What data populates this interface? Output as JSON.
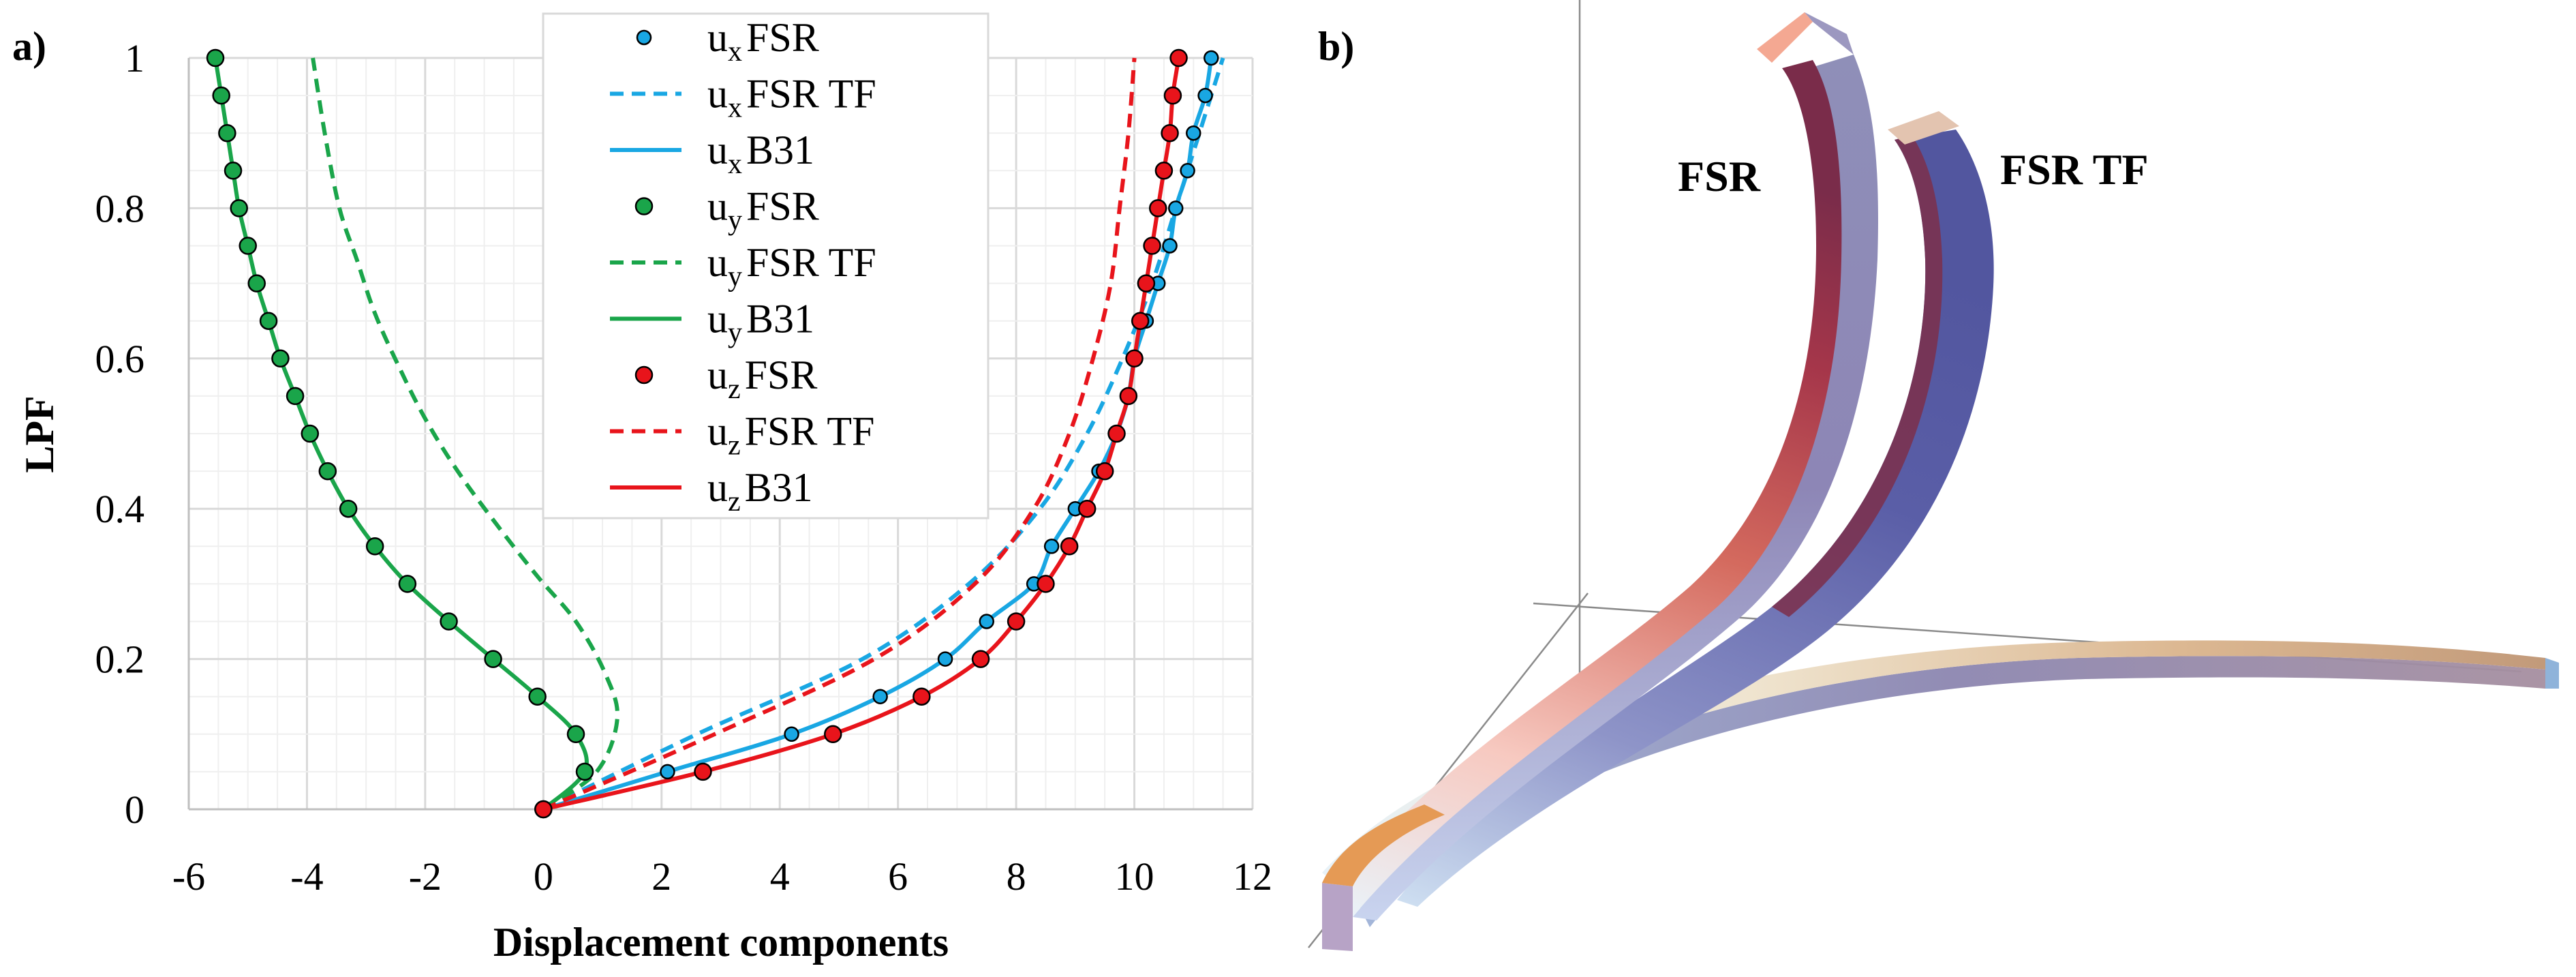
{
  "panel_a_label": "a)",
  "panel_b_label": "b)",
  "chart_data": {
    "type": "line",
    "xlabel": "Displacement components",
    "ylabel": "LPF",
    "xlim": [
      -6,
      12
    ],
    "ylim": [
      0,
      1
    ],
    "xticks": [
      "-6",
      "-4",
      "-2",
      "0",
      "2",
      "4",
      "6",
      "8",
      "10",
      "12"
    ],
    "yticks": [
      "0",
      "0.2",
      "0.4",
      "0.6",
      "0.8",
      "1"
    ],
    "grid": true,
    "legend_position": "top-center",
    "colors": {
      "ux": "#19a7e3",
      "uy": "#1aa54a",
      "uz": "#e8141b"
    },
    "series": [
      {
        "name": "ux FSR",
        "base": "u",
        "sub": "x",
        "suffix": "FSR",
        "style": "markers",
        "color": "#19a7e3",
        "x": [
          0,
          2.1,
          4.2,
          5.7,
          6.8,
          7.5,
          8.3,
          8.6,
          9.0,
          9.4,
          9.7,
          9.9,
          10.0,
          10.2,
          10.4,
          10.6,
          10.7,
          10.9,
          11.0,
          11.2,
          11.3
        ],
        "y": [
          0,
          0.05,
          0.1,
          0.15,
          0.2,
          0.25,
          0.3,
          0.35,
          0.4,
          0.45,
          0.5,
          0.55,
          0.6,
          0.65,
          0.7,
          0.75,
          0.8,
          0.85,
          0.9,
          0.95,
          1.0
        ]
      },
      {
        "name": "ux FSR TF",
        "base": "u",
        "sub": "x",
        "suffix": "FSR TF",
        "style": "dashed",
        "color": "#19a7e3",
        "x": [
          0,
          2.6,
          5.4,
          7.2,
          8.4,
          9.2,
          9.8,
          10.3,
          10.7,
          11.1,
          11.5
        ],
        "y": [
          0,
          0.1,
          0.2,
          0.3,
          0.4,
          0.5,
          0.6,
          0.7,
          0.8,
          0.9,
          1.0
        ]
      },
      {
        "name": "ux B31",
        "base": "u",
        "sub": "x",
        "suffix": "B31",
        "style": "solid",
        "color": "#19a7e3",
        "x": [
          0,
          2.1,
          4.2,
          5.7,
          6.8,
          7.5,
          8.3,
          8.6,
          9.0,
          9.4,
          9.7,
          9.9,
          10.0,
          10.2,
          10.4,
          10.6,
          10.7,
          10.9,
          11.0,
          11.2,
          11.3
        ],
        "y": [
          0,
          0.05,
          0.1,
          0.15,
          0.2,
          0.25,
          0.3,
          0.35,
          0.4,
          0.45,
          0.5,
          0.55,
          0.6,
          0.65,
          0.7,
          0.75,
          0.8,
          0.85,
          0.9,
          0.95,
          1.0
        ]
      },
      {
        "name": "uy FSR",
        "base": "u",
        "sub": "y",
        "suffix": "FSR",
        "style": "markers",
        "color": "#1aa54a",
        "x": [
          0,
          0.7,
          0.55,
          -0.1,
          -0.85,
          -1.6,
          -2.3,
          -2.85,
          -3.3,
          -3.65,
          -3.95,
          -4.2,
          -4.45,
          -4.65,
          -4.85,
          -5.0,
          -5.15,
          -5.25,
          -5.35,
          -5.45,
          -5.55
        ],
        "y": [
          0,
          0.05,
          0.1,
          0.15,
          0.2,
          0.25,
          0.3,
          0.35,
          0.4,
          0.45,
          0.5,
          0.55,
          0.6,
          0.65,
          0.7,
          0.75,
          0.8,
          0.85,
          0.9,
          0.95,
          1.0
        ]
      },
      {
        "name": "uy FSR TF",
        "base": "u",
        "sub": "y",
        "suffix": "FSR TF",
        "style": "dashed",
        "color": "#1aa54a",
        "x": [
          0,
          0.9,
          1.25,
          1.05,
          0.55,
          -0.1,
          -0.8,
          -1.45,
          -2.0,
          -2.45,
          -2.85,
          -3.15,
          -3.45,
          -3.7,
          -3.9
        ],
        "y": [
          0,
          0.05,
          0.12,
          0.18,
          0.25,
          0.31,
          0.38,
          0.45,
          0.52,
          0.59,
          0.66,
          0.73,
          0.8,
          0.9,
          1.0
        ]
      },
      {
        "name": "uy B31",
        "base": "u",
        "sub": "y",
        "suffix": "B31",
        "style": "solid",
        "color": "#1aa54a",
        "x": [
          0,
          0.7,
          0.55,
          -0.1,
          -0.85,
          -1.6,
          -2.3,
          -2.85,
          -3.3,
          -3.65,
          -3.95,
          -4.2,
          -4.45,
          -4.65,
          -4.85,
          -5.0,
          -5.15,
          -5.25,
          -5.35,
          -5.45,
          -5.55
        ],
        "y": [
          0,
          0.05,
          0.1,
          0.15,
          0.2,
          0.25,
          0.3,
          0.35,
          0.4,
          0.45,
          0.5,
          0.55,
          0.6,
          0.65,
          0.7,
          0.75,
          0.8,
          0.85,
          0.9,
          0.95,
          1.0
        ]
      },
      {
        "name": "uz FSR",
        "base": "u",
        "sub": "z",
        "suffix": "FSR",
        "style": "markers",
        "color": "#e8141b",
        "x": [
          0,
          2.7,
          4.9,
          6.4,
          7.4,
          8.0,
          8.5,
          8.9,
          9.2,
          9.5,
          9.7,
          9.9,
          10.0,
          10.1,
          10.2,
          10.3,
          10.4,
          10.5,
          10.6,
          10.65,
          10.75
        ],
        "y": [
          0,
          0.05,
          0.1,
          0.15,
          0.2,
          0.25,
          0.3,
          0.35,
          0.4,
          0.45,
          0.5,
          0.55,
          0.6,
          0.65,
          0.7,
          0.75,
          0.8,
          0.85,
          0.9,
          0.95,
          1.0
        ]
      },
      {
        "name": "uz FSR TF",
        "base": "u",
        "sub": "z",
        "suffix": "FSR TF",
        "style": "dashed",
        "color": "#e8141b",
        "x": [
          0,
          2.9,
          5.6,
          7.3,
          8.3,
          8.9,
          9.3,
          9.6,
          9.75,
          9.9,
          10.0
        ],
        "y": [
          0,
          0.1,
          0.2,
          0.3,
          0.4,
          0.5,
          0.6,
          0.7,
          0.8,
          0.9,
          1.0
        ]
      },
      {
        "name": "uz B31",
        "base": "u",
        "sub": "z",
        "suffix": "B31",
        "style": "solid",
        "color": "#e8141b",
        "x": [
          0,
          2.7,
          4.9,
          6.4,
          7.4,
          8.0,
          8.5,
          8.9,
          9.2,
          9.5,
          9.7,
          9.9,
          10.0,
          10.1,
          10.2,
          10.3,
          10.4,
          10.5,
          10.6,
          10.65,
          10.75
        ],
        "y": [
          0,
          0.05,
          0.1,
          0.15,
          0.2,
          0.25,
          0.3,
          0.35,
          0.4,
          0.45,
          0.5,
          0.55,
          0.6,
          0.65,
          0.7,
          0.75,
          0.8,
          0.85,
          0.9,
          0.95,
          1.0
        ]
      }
    ]
  },
  "render_3d": {
    "labels": {
      "fsr": "FSR",
      "fsr_tf": "FSR TF"
    },
    "colors": {
      "fsr_face": "#8a2f4c",
      "fsr_tip": "#f4a892",
      "tf_face": "#5d5fa6",
      "tf_tip": "#e3c4b0",
      "base_face": "#d8b08c",
      "base_side": "#9aa0c8"
    }
  }
}
